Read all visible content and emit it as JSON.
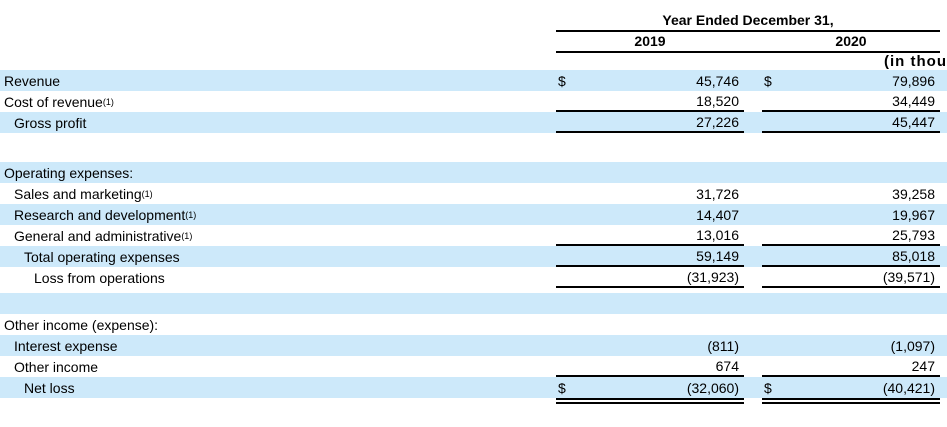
{
  "header": {
    "period_label": "Year Ended December 31,",
    "year_columns": [
      "2019",
      "2020"
    ],
    "units_note": "(in thou"
  },
  "colors": {
    "row_shade": "#cde9fa",
    "rule": "#000000",
    "text": "#000000"
  },
  "table": {
    "rows": [
      {
        "label": "Revenue",
        "sup": "",
        "indent": 0,
        "shaded": true,
        "dollar1": "$",
        "v2019": "45,746",
        "dollar2": "$",
        "v2020": "79,896"
      },
      {
        "label": "Cost of revenue",
        "sup": "(1)",
        "indent": 0,
        "shaded": false,
        "v2019": "18,520",
        "v2020": "34,449",
        "rule": "single"
      },
      {
        "label": "Gross profit",
        "sup": "",
        "indent": 1,
        "shaded": true,
        "v2019": "27,226",
        "v2020": "45,447",
        "rule": "single"
      },
      {
        "spacer": true,
        "height": 29,
        "shaded": false
      },
      {
        "label": "Operating expenses:",
        "sup": "",
        "indent": 0,
        "shaded": true,
        "v2019": "",
        "v2020": ""
      },
      {
        "label": "Sales and marketing",
        "sup": "(1)",
        "indent": 1,
        "shaded": false,
        "v2019": "31,726",
        "v2020": "39,258"
      },
      {
        "label": "Research and development",
        "sup": "(1)",
        "indent": 1,
        "shaded": true,
        "v2019": "14,407",
        "v2020": "19,967"
      },
      {
        "label": "General and administrative",
        "sup": "(1)",
        "indent": 1,
        "shaded": false,
        "v2019": "13,016",
        "v2020": "25,793",
        "rule": "single"
      },
      {
        "label": "Total operating expenses",
        "sup": "",
        "indent": 2,
        "shaded": true,
        "v2019": "59,149",
        "v2020": "85,018",
        "rule": "single"
      },
      {
        "label": "Loss from operations",
        "sup": "",
        "indent": 3,
        "shaded": false,
        "v2019": "(31,923)",
        "v2020": "(39,571)",
        "rule": "single"
      },
      {
        "spacer": true,
        "height": 5,
        "shaded": false
      },
      {
        "spacer": true,
        "height": 21,
        "shaded": true
      },
      {
        "label": "Other income (expense):",
        "sup": "",
        "indent": 0,
        "shaded": false,
        "v2019": "",
        "v2020": ""
      },
      {
        "label": "Interest expense",
        "sup": "",
        "indent": 1,
        "shaded": true,
        "v2019": "(811)",
        "v2020": "(1,097)"
      },
      {
        "label": "Other income",
        "sup": "",
        "indent": 1,
        "shaded": false,
        "v2019": "674",
        "v2020": "247",
        "rule": "single"
      },
      {
        "label": "Net loss",
        "sup": "",
        "indent": 2,
        "shaded": true,
        "dollar1": "$",
        "v2019": "(32,060)",
        "dollar2": "$",
        "v2020": "(40,421)",
        "rule": "double"
      }
    ]
  }
}
